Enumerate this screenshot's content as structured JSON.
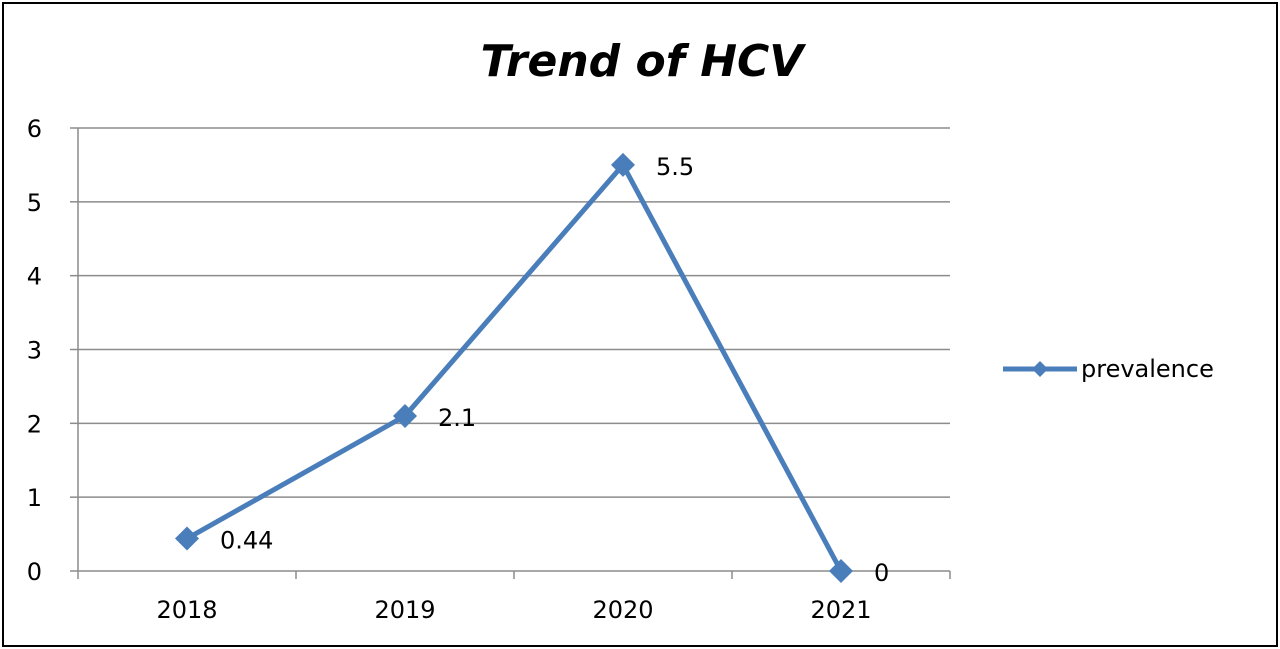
{
  "chart_data": {
    "type": "line",
    "title": "Trend of HCV",
    "categories": [
      "2018",
      "2019",
      "2020",
      "2021"
    ],
    "series": [
      {
        "name": "prevalence",
        "values": [
          0.44,
          2.1,
          5.5,
          0
        ],
        "labels": [
          "0.44",
          "2.1",
          "5.5",
          "0"
        ]
      }
    ],
    "ylim": [
      0,
      6
    ],
    "yticks": [
      0,
      1,
      2,
      3,
      4,
      5,
      6
    ],
    "grid": true,
    "legend": "right",
    "color": "#4a7ebb",
    "xlabel": "",
    "ylabel": ""
  }
}
